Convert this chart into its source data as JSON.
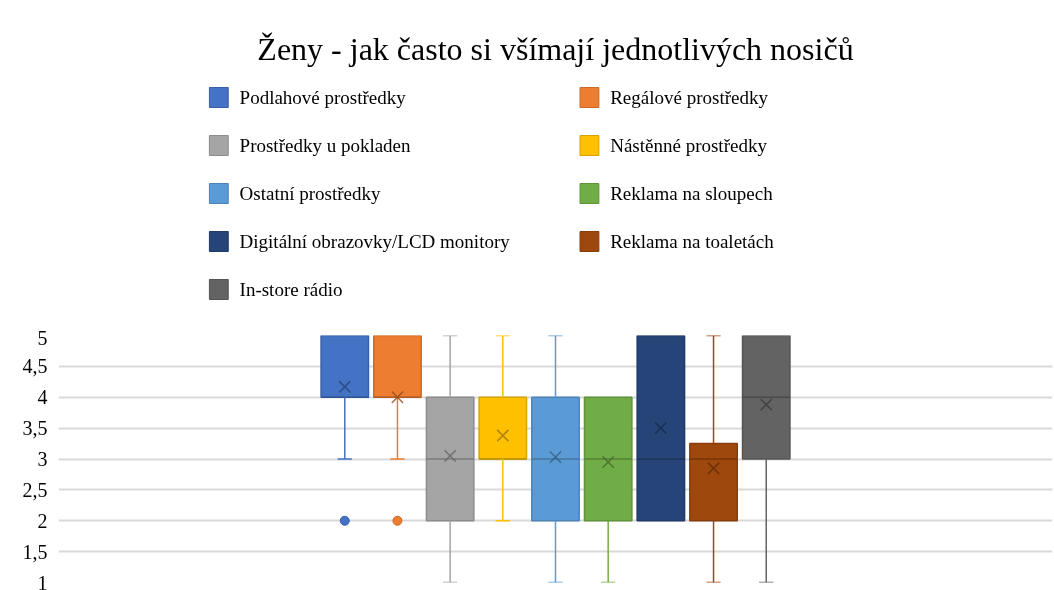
{
  "chart_data": {
    "type": "box",
    "title": "Ženy - jak často si všímají jednotlivých nosičů",
    "categories": [
      null
    ],
    "series": [
      {
        "name": "Podlahové prostředky",
        "color": "#4472c4",
        "boxes": [
          {
            "low": 3,
            "q1": 4,
            "median": 4,
            "q3": 5,
            "high": 5,
            "mean": 4.17,
            "outliers": [
              2
            ]
          }
        ]
      },
      {
        "name": "Regálové prostředky",
        "color": "#ed7d31",
        "boxes": [
          {
            "low": 3,
            "q1": 4,
            "median": 4,
            "q3": 5,
            "high": 5,
            "mean": 4.0,
            "outliers": [
              2
            ]
          }
        ]
      },
      {
        "name": "Prostředky u pokladen",
        "color": "#a5a5a5",
        "boxes": [
          {
            "low": 1,
            "q1": 2,
            "median": 3,
            "q3": 4,
            "high": 5,
            "mean": 3.05
          }
        ]
      },
      {
        "name": "Nástěnné prostředky",
        "color": "#ffc000",
        "boxes": [
          {
            "low": 2,
            "q1": 3,
            "median": 3,
            "q3": 4,
            "high": 5,
            "mean": 3.38
          }
        ]
      },
      {
        "name": "Ostatní prostředky",
        "color": "#5b9bd5",
        "boxes": [
          {
            "low": 1,
            "q1": 2,
            "median": 3,
            "q3": 4,
            "high": 5,
            "mean": 3.03
          }
        ]
      },
      {
        "name": "Reklama na sloupech",
        "color": "#70ad47",
        "boxes": [
          {
            "low": 1,
            "q1": 2,
            "median": 3,
            "q3": 4,
            "high": 4,
            "mean": 2.95
          }
        ]
      },
      {
        "name": "Digitální obrazovky/LCD monitory",
        "color": "#264478",
        "boxes": [
          {
            "low": 2,
            "q1": 2,
            "median": 3,
            "q3": 5,
            "high": 5,
            "mean": 3.5
          }
        ]
      },
      {
        "name": "Reklama na toaletách",
        "color": "#9e480e",
        "boxes": [
          {
            "low": 1,
            "q1": 2,
            "median": 3,
            "q3": 3.25,
            "high": 5,
            "mean": 2.85
          }
        ]
      },
      {
        "name": "In-store rádio",
        "color": "#636363",
        "boxes": [
          {
            "low": 1,
            "q1": 3,
            "median": 4,
            "q3": 5,
            "high": 5,
            "mean": 3.88
          }
        ]
      }
    ],
    "ylim": [
      1,
      5
    ],
    "yticks": [
      1,
      {
        "value": 1.5,
        "label": "1,5"
      },
      2,
      {
        "value": 2.5,
        "label": "2,5"
      },
      3,
      {
        "value": 3.5,
        "label": "3,5"
      },
      4,
      {
        "value": 4.5,
        "label": "4,5"
      },
      5
    ],
    "grid": "y",
    "legend": "top",
    "tick_labels": "y"
  }
}
